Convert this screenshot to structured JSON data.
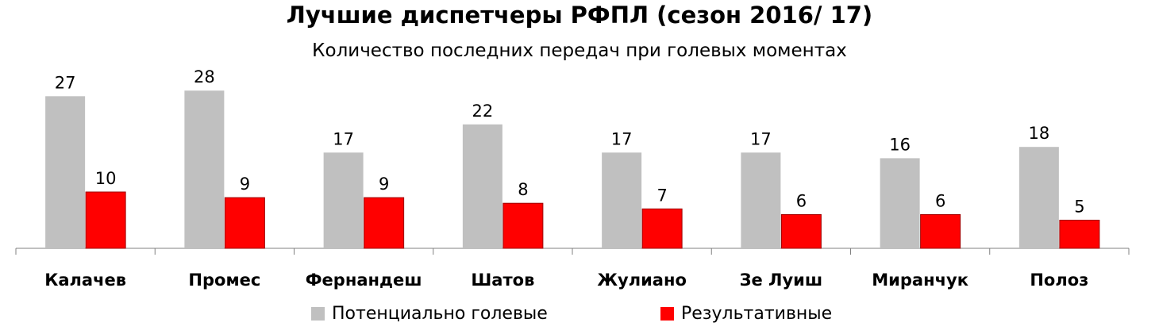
{
  "chart_data": {
    "type": "bar",
    "title": "Лучшие диспетчеры РФПЛ (сезон 2016/ 17)",
    "subtitle": "Количество последних передач при голевых моментах",
    "categories": [
      "Калачев",
      "Промес",
      "Фернандеш",
      "Шатов",
      "Жулиано",
      "Зе Луиш",
      "Миранчук",
      "Полоз"
    ],
    "series": [
      {
        "name": "Потенциально голевые",
        "values": [
          27,
          28,
          17,
          22,
          17,
          17,
          16,
          18
        ],
        "color": "#c0c0c0"
      },
      {
        "name": "Результативные",
        "values": [
          10,
          9,
          9,
          8,
          7,
          6,
          6,
          5
        ],
        "color": "#ff0000"
      }
    ],
    "ylim": [
      0,
      30
    ],
    "grid": false,
    "legend_position": "bottom"
  }
}
